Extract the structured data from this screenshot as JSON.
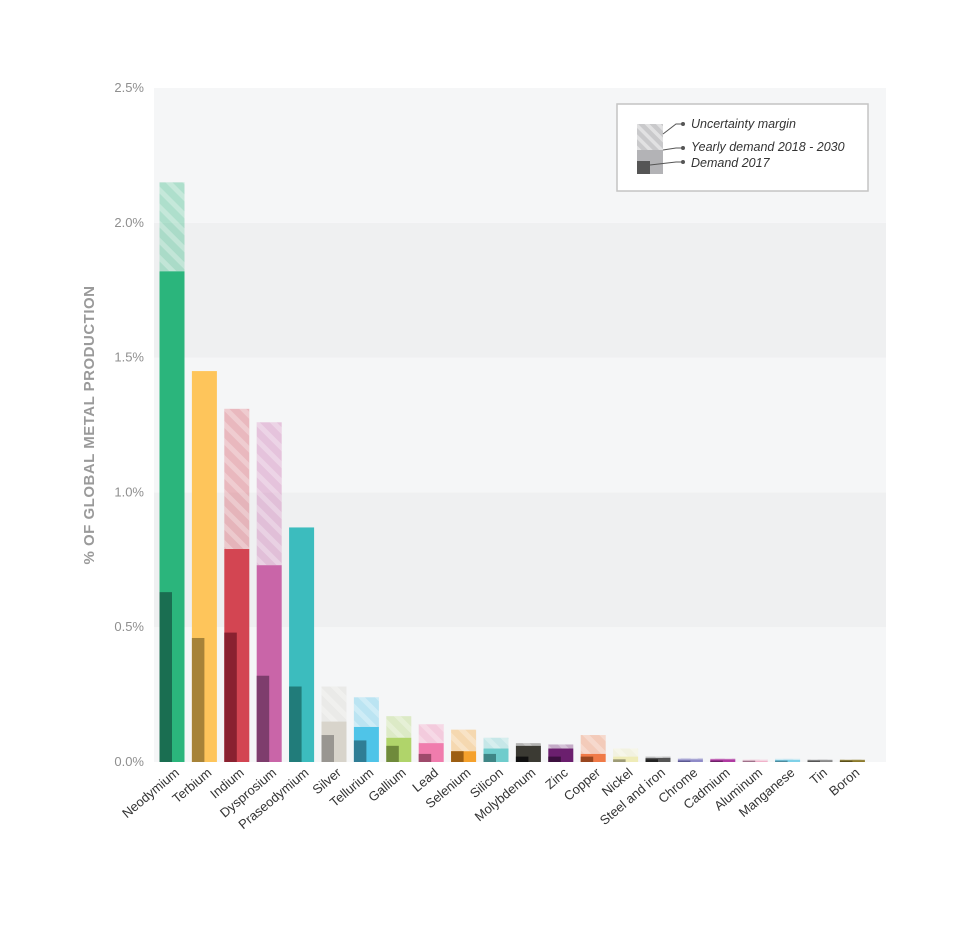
{
  "chart_data": {
    "type": "bar",
    "ylabel": "% OF GLOBAL METAL PRODUCTION",
    "xlabel": "",
    "title": "",
    "ylim": [
      0,
      2.5
    ],
    "yticks": [
      "0.0%",
      "0.5%",
      "1.0%",
      "1.5%",
      "2.0%",
      "2.5%"
    ],
    "ytick_values": [
      0,
      0.5,
      1.0,
      1.5,
      2.0,
      2.5
    ],
    "legend": {
      "position": "top-right",
      "entries": [
        "Uncertainty margin",
        "Yearly demand 2018 - 2030",
        "Demand 2017"
      ]
    },
    "categories": [
      "Neodymium",
      "Terbium",
      "Indium",
      "Dysprosium",
      "Praseodymium",
      "Silver",
      "Tellurium",
      "Gallium",
      "Lead",
      "Selenium",
      "Silicon",
      "Molybdenum",
      "Zinc",
      "Copper",
      "Nickel",
      "Steel and iron",
      "Chrome",
      "Cadmium",
      "Aluminum",
      "Manganese",
      "Tin",
      "Boron"
    ],
    "series": [
      {
        "name": "Demand 2017",
        "values": [
          0.63,
          0.46,
          0.48,
          0.32,
          0.28,
          0.1,
          0.08,
          0.06,
          0.03,
          0.04,
          0.03,
          0.02,
          0.02,
          0.02,
          0.01,
          0.01,
          0.005,
          0.005,
          0.005,
          0.005,
          0.005,
          0.005
        ]
      },
      {
        "name": "Yearly demand 2018 - 2030",
        "values": [
          1.82,
          1.45,
          0.79,
          0.73,
          0.87,
          0.15,
          0.13,
          0.09,
          0.07,
          0.04,
          0.05,
          0.06,
          0.05,
          0.03,
          0.02,
          0.015,
          0.01,
          0.01,
          0.005,
          0.008,
          0.007,
          0.007
        ]
      },
      {
        "name": "Uncertainty margin",
        "values": [
          [
            1.82,
            2.15
          ],
          null,
          [
            0.79,
            1.31
          ],
          [
            0.73,
            1.26
          ],
          null,
          [
            0.15,
            0.28
          ],
          [
            0.13,
            0.24
          ],
          [
            0.09,
            0.17
          ],
          [
            0.07,
            0.14
          ],
          [
            0.04,
            0.12
          ],
          [
            0.05,
            0.09
          ],
          [
            0.06,
            0.07
          ],
          [
            0.05,
            0.065
          ],
          [
            0.03,
            0.1
          ],
          [
            0.02,
            0.05
          ],
          [
            0.015,
            0.02
          ],
          [
            0.01,
            0.015
          ],
          [
            0.01,
            0.013
          ],
          [
            0.005,
            0.01
          ],
          [
            0.008,
            0.012
          ],
          [
            0.007,
            0.01
          ],
          [
            0.007,
            0.01
          ]
        ]
      }
    ],
    "colors": [
      "#2bb57c",
      "#fec55b",
      "#d34552",
      "#c965a8",
      "#3cbcbe",
      "#d8d4cb",
      "#4fc4e8",
      "#b0d46a",
      "#f07cad",
      "#f5a12c",
      "#6fcccc",
      "#3b3a33",
      "#6b1f6e",
      "#f07a47",
      "#efecb8",
      "#555555",
      "#8f8bc8",
      "#b03aa2",
      "#f1b3cb",
      "#7fd1e8",
      "#8a8a8a",
      "#8c7a2a"
    ],
    "dark_colors": [
      "#1a6e51",
      "#a78338",
      "#8a2130",
      "#7e3d6d",
      "#217c7a",
      "#999691",
      "#2f7d95",
      "#6f8a3b",
      "#9e4a6b",
      "#9c5e12",
      "#3f8686",
      "#111111",
      "#3c103f",
      "#99461f",
      "#9d9b76",
      "#222222",
      "#5b5890",
      "#6e2168",
      "#a0718a",
      "#4e8c9f",
      "#555555",
      "#5a4e19"
    ]
  }
}
